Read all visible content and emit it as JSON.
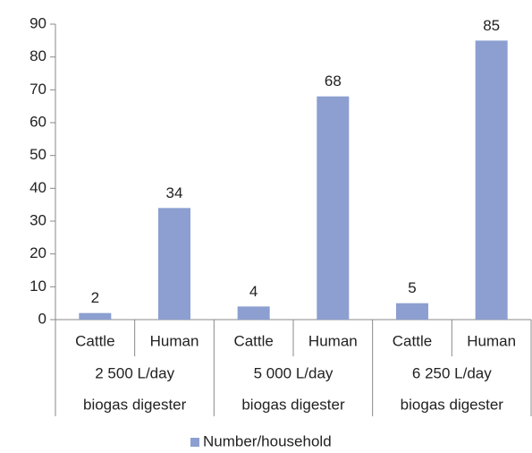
{
  "chart_data": {
    "type": "bar",
    "categories": [
      "Cattle",
      "Human",
      "Cattle",
      "Human",
      "Cattle",
      "Human"
    ],
    "groups": [
      {
        "label": [
          "2 500 L/day",
          "biogas digester"
        ],
        "size": 2
      },
      {
        "label": [
          "5 000 L/day",
          "biogas digester"
        ],
        "size": 2
      },
      {
        "label": [
          "6 250 L/day",
          "biogas digester"
        ],
        "size": 2
      }
    ],
    "series": [
      {
        "name": "Number/household",
        "color": "#8c9fd0",
        "values": [
          2,
          34,
          4,
          68,
          5,
          85
        ]
      }
    ],
    "ylim": [
      0,
      90
    ],
    "yticks": [
      0,
      10,
      20,
      30,
      40,
      50,
      60,
      70,
      80,
      90
    ],
    "grid": false,
    "legend": "bottom",
    "data_labels": true
  }
}
